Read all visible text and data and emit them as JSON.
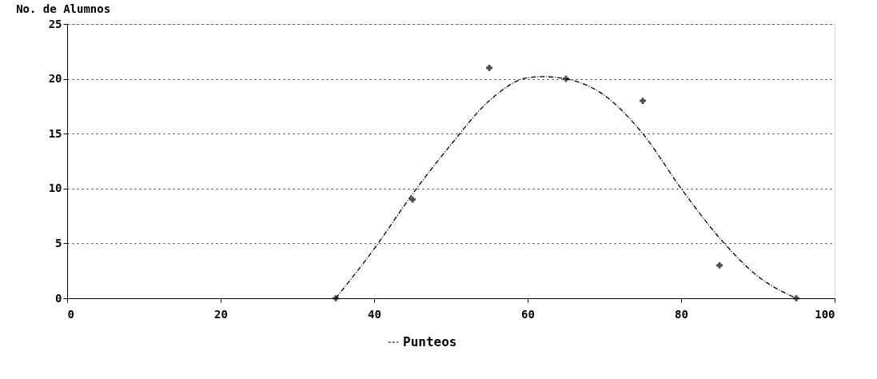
{
  "chart_data": {
    "type": "scatter",
    "ylabel": "No. de Alumnos",
    "xlim": [
      0,
      100
    ],
    "xticks": [
      0,
      20,
      40,
      60,
      80,
      100
    ],
    "ylim": [
      0,
      25
    ],
    "yticks": [
      0,
      5,
      10,
      15,
      20,
      25
    ],
    "grid": "y",
    "legend": "bottom",
    "series": [
      {
        "name": "Punteos",
        "marker": "cross",
        "color": "#000000",
        "x": [
          35,
          45,
          55,
          65,
          75,
          85,
          95
        ],
        "values": [
          0,
          9,
          21,
          20,
          18,
          3,
          0
        ]
      },
      {
        "type": "line",
        "marker": "none",
        "color": "#000000",
        "line_style": "dashed",
        "x": [
          35,
          40,
          45,
          50,
          55,
          60,
          62,
          65,
          70,
          75,
          80,
          85,
          90,
          95
        ],
        "values": [
          0,
          4.5,
          9.5,
          14,
          18,
          20.1,
          20.2,
          20,
          18.5,
          15,
          10,
          5.5,
          2,
          0
        ]
      }
    ]
  }
}
